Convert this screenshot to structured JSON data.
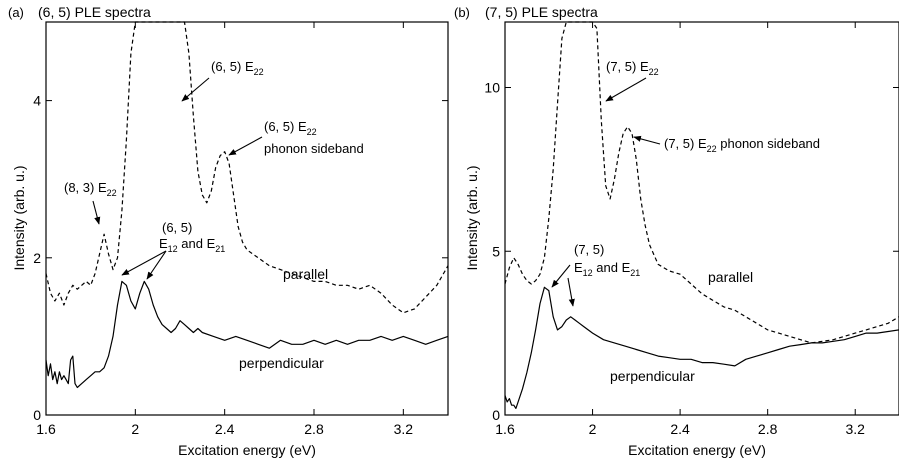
{
  "chart_data": [
    {
      "type": "line",
      "panel_label": "(a)",
      "title": "(6, 5) PLE spectra",
      "xlabel": "Excitation energy (eV)",
      "ylabel": "Intensity (arb. u.)",
      "xlim": [
        1.6,
        3.4
      ],
      "ylim": [
        0,
        5
      ],
      "x_ticks": [
        1.6,
        2,
        2.4,
        2.8,
        3.2
      ],
      "x_tick_labels": [
        "1.6",
        "2",
        "2.4",
        "2.8",
        "3.2"
      ],
      "y_ticks": [
        0,
        2,
        4
      ],
      "y_tick_labels": [
        "0",
        "2",
        "4"
      ],
      "series": [
        {
          "name": "parallel",
          "style": "dashed",
          "x": [
            1.6,
            1.62,
            1.64,
            1.66,
            1.68,
            1.7,
            1.72,
            1.74,
            1.76,
            1.78,
            1.8,
            1.82,
            1.84,
            1.86,
            1.88,
            1.9,
            1.92,
            1.94,
            1.96,
            1.98,
            2.0,
            2.02,
            2.04,
            2.06,
            2.08,
            2.1,
            2.12,
            2.14,
            2.16,
            2.18,
            2.2,
            2.22,
            2.24,
            2.26,
            2.28,
            2.3,
            2.32,
            2.34,
            2.36,
            2.38,
            2.4,
            2.42,
            2.44,
            2.46,
            2.48,
            2.5,
            2.55,
            2.6,
            2.65,
            2.7,
            2.75,
            2.8,
            2.85,
            2.9,
            2.95,
            3.0,
            3.05,
            3.1,
            3.15,
            3.2,
            3.25,
            3.3,
            3.35,
            3.4
          ],
          "y": [
            1.8,
            1.55,
            1.45,
            1.55,
            1.4,
            1.55,
            1.65,
            1.6,
            1.65,
            1.7,
            1.65,
            1.8,
            2.05,
            2.3,
            2.05,
            1.85,
            2.0,
            2.6,
            3.5,
            4.6,
            5.0,
            5.0,
            5.0,
            5.0,
            5.0,
            5.0,
            5.0,
            5.0,
            5.0,
            5.0,
            5.0,
            5.0,
            4.6,
            3.8,
            3.1,
            2.8,
            2.7,
            2.85,
            3.15,
            3.3,
            3.35,
            3.2,
            2.8,
            2.4,
            2.2,
            2.1,
            2.0,
            1.9,
            1.85,
            1.8,
            1.75,
            1.7,
            1.7,
            1.65,
            1.65,
            1.6,
            1.65,
            1.55,
            1.4,
            1.3,
            1.35,
            1.5,
            1.65,
            1.9
          ]
        },
        {
          "name": "perpendicular",
          "style": "solid",
          "x": [
            1.6,
            1.61,
            1.62,
            1.63,
            1.64,
            1.65,
            1.66,
            1.67,
            1.68,
            1.69,
            1.7,
            1.71,
            1.72,
            1.73,
            1.74,
            1.76,
            1.78,
            1.8,
            1.82,
            1.84,
            1.86,
            1.88,
            1.9,
            1.92,
            1.94,
            1.96,
            1.98,
            2.0,
            2.02,
            2.04,
            2.06,
            2.08,
            2.1,
            2.12,
            2.14,
            2.16,
            2.18,
            2.2,
            2.22,
            2.24,
            2.26,
            2.28,
            2.3,
            2.35,
            2.4,
            2.45,
            2.5,
            2.55,
            2.6,
            2.65,
            2.7,
            2.75,
            2.8,
            2.85,
            2.9,
            2.95,
            3.0,
            3.05,
            3.1,
            3.15,
            3.2,
            3.25,
            3.3,
            3.35,
            3.4
          ],
          "y": [
            0.7,
            0.5,
            0.65,
            0.45,
            0.55,
            0.4,
            0.55,
            0.45,
            0.5,
            0.45,
            0.4,
            0.7,
            0.75,
            0.4,
            0.35,
            0.4,
            0.45,
            0.5,
            0.55,
            0.55,
            0.6,
            0.75,
            1.0,
            1.4,
            1.7,
            1.65,
            1.45,
            1.35,
            1.55,
            1.7,
            1.6,
            1.4,
            1.25,
            1.15,
            1.1,
            1.05,
            1.1,
            1.2,
            1.15,
            1.1,
            1.05,
            1.1,
            1.05,
            1.0,
            0.95,
            1.0,
            0.95,
            0.9,
            0.85,
            0.95,
            0.9,
            0.9,
            0.95,
            0.9,
            0.95,
            0.9,
            0.95,
            0.95,
            1.0,
            0.95,
            1.0,
            0.95,
            0.9,
            0.95,
            1.0
          ]
        }
      ],
      "annotations": [
        {
          "prefix": "(6, 5) E",
          "sub": "22",
          "suffix": ""
        },
        {
          "prefix": "(6, 5) E",
          "sub": "22",
          "suffix": ""
        },
        {
          "text": "phonon sideband"
        },
        {
          "prefix": "(8, 3) E",
          "sub": "22",
          "suffix": ""
        },
        {
          "text": "(6, 5)"
        },
        {
          "prefix": "E",
          "sub": "12",
          "mid": " and E",
          "sub2": "21"
        },
        {
          "text": "parallel"
        },
        {
          "text": "perpendicular"
        }
      ]
    },
    {
      "type": "line",
      "panel_label": "(b)",
      "title": "(7, 5) PLE spectra",
      "xlabel": "Excitation energy (eV)",
      "ylabel": "Intensity (arb. u.)",
      "xlim": [
        1.6,
        3.4
      ],
      "ylim": [
        0,
        12
      ],
      "x_ticks": [
        1.6,
        2,
        2.4,
        2.8,
        3.2
      ],
      "x_tick_labels": [
        "1.6",
        "2",
        "2.4",
        "2.8",
        "3.2"
      ],
      "y_ticks": [
        0,
        5,
        10
      ],
      "y_tick_labels": [
        "0",
        "5",
        "10"
      ],
      "series": [
        {
          "name": "parallel",
          "style": "dashed",
          "x": [
            1.6,
            1.62,
            1.64,
            1.66,
            1.68,
            1.7,
            1.72,
            1.74,
            1.76,
            1.78,
            1.8,
            1.82,
            1.84,
            1.86,
            1.88,
            1.9,
            1.92,
            1.94,
            1.96,
            1.98,
            2.0,
            2.02,
            2.04,
            2.06,
            2.08,
            2.1,
            2.12,
            2.14,
            2.16,
            2.18,
            2.2,
            2.22,
            2.24,
            2.26,
            2.28,
            2.3,
            2.35,
            2.4,
            2.45,
            2.5,
            2.55,
            2.6,
            2.65,
            2.7,
            2.75,
            2.8,
            2.85,
            2.9,
            2.95,
            3.0,
            3.05,
            3.1,
            3.15,
            3.2,
            3.25,
            3.3,
            3.35,
            3.4
          ],
          "y": [
            4.0,
            4.5,
            4.8,
            4.6,
            4.3,
            4.1,
            4.0,
            4.1,
            4.3,
            4.8,
            6.0,
            7.5,
            9.5,
            11.5,
            12.0,
            12.0,
            12.0,
            12.0,
            12.0,
            12.0,
            12.0,
            11.8,
            9.0,
            7.0,
            6.6,
            7.2,
            8.0,
            8.6,
            8.8,
            8.6,
            7.8,
            6.6,
            5.8,
            5.2,
            4.9,
            4.6,
            4.4,
            4.3,
            4.0,
            3.7,
            3.5,
            3.3,
            3.2,
            3.0,
            2.8,
            2.6,
            2.5,
            2.4,
            2.3,
            2.2,
            2.25,
            2.3,
            2.4,
            2.5,
            2.6,
            2.7,
            2.8,
            3.0
          ]
        },
        {
          "name": "perpendicular",
          "style": "solid",
          "x": [
            1.6,
            1.61,
            1.62,
            1.63,
            1.64,
            1.65,
            1.66,
            1.68,
            1.7,
            1.72,
            1.74,
            1.76,
            1.78,
            1.8,
            1.82,
            1.84,
            1.86,
            1.88,
            1.9,
            1.92,
            1.94,
            1.96,
            1.98,
            2.0,
            2.05,
            2.1,
            2.15,
            2.2,
            2.25,
            2.3,
            2.35,
            2.4,
            2.45,
            2.5,
            2.55,
            2.6,
            2.65,
            2.7,
            2.75,
            2.8,
            2.85,
            2.9,
            2.95,
            3.0,
            3.05,
            3.1,
            3.15,
            3.2,
            3.25,
            3.3,
            3.35,
            3.4
          ],
          "y": [
            0.6,
            0.4,
            0.5,
            0.3,
            0.3,
            0.2,
            0.4,
            0.8,
            1.3,
            1.9,
            2.6,
            3.4,
            3.9,
            3.8,
            3.0,
            2.6,
            2.7,
            2.9,
            3.0,
            2.9,
            2.8,
            2.7,
            2.6,
            2.5,
            2.3,
            2.2,
            2.1,
            2.0,
            1.9,
            1.8,
            1.75,
            1.7,
            1.7,
            1.6,
            1.6,
            1.55,
            1.5,
            1.7,
            1.8,
            1.9,
            2.0,
            2.1,
            2.15,
            2.2,
            2.2,
            2.25,
            2.3,
            2.4,
            2.5,
            2.5,
            2.55,
            2.6
          ]
        }
      ],
      "annotations": [
        {
          "prefix": "(7, 5) E",
          "sub": "22",
          "suffix": ""
        },
        {
          "prefix": "(7, 5) E",
          "sub": "22",
          "suffix": " phonon sideband"
        },
        {
          "text": "(7, 5)"
        },
        {
          "prefix": "E",
          "sub": "12",
          "mid": " and E",
          "sub2": "21"
        },
        {
          "text": "parallel"
        },
        {
          "text": "perpendicular"
        }
      ]
    }
  ]
}
